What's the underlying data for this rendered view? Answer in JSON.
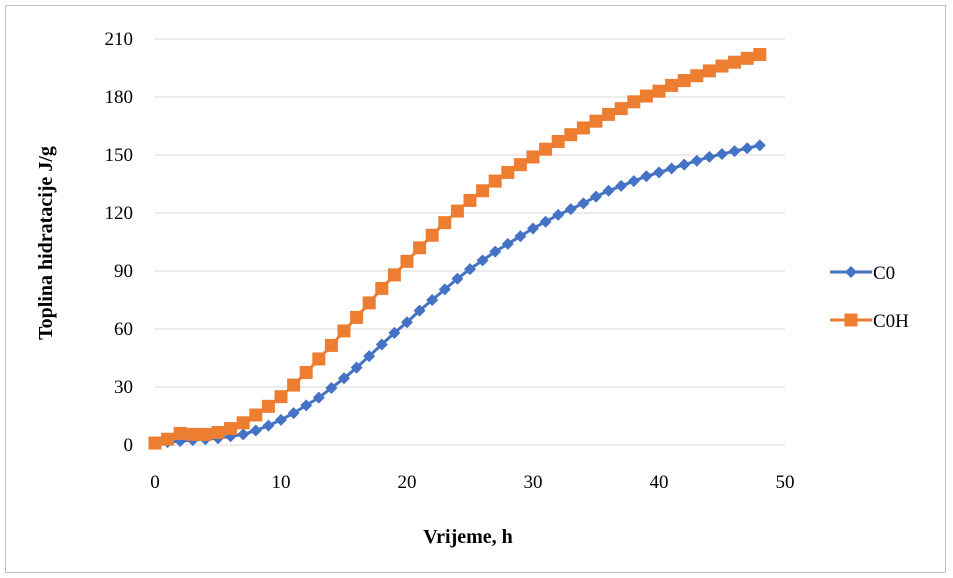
{
  "chart_data": {
    "type": "line",
    "title": "",
    "xlabel": "Vrijeme, h",
    "ylabel": "Toplina hidratacije J/g",
    "xlim": [
      0,
      50
    ],
    "ylim": [
      0,
      210
    ],
    "x_ticks": [
      0,
      10,
      20,
      30,
      40,
      50
    ],
    "y_ticks": [
      0,
      30,
      60,
      90,
      120,
      150,
      180,
      210
    ],
    "grid": "horizontal",
    "legend_position": "right",
    "x": [
      0,
      1,
      2,
      3,
      4,
      5,
      6,
      7,
      8,
      9,
      10,
      11,
      12,
      13,
      14,
      15,
      16,
      17,
      18,
      19,
      20,
      21,
      22,
      23,
      24,
      25,
      26,
      27,
      28,
      29,
      30,
      31,
      32,
      33,
      34,
      35,
      36,
      37,
      38,
      39,
      40,
      41,
      42,
      43,
      44,
      45,
      46,
      47,
      48
    ],
    "series": [
      {
        "name": "C0",
        "color": "#4472C4",
        "marker": "diamond",
        "values": [
          0.5,
          1.5,
          2.0,
          2.5,
          3.0,
          3.5,
          4.5,
          5.5,
          7.5,
          10,
          13,
          16.5,
          20.5,
          24.5,
          29.5,
          34.5,
          40,
          46,
          52,
          58,
          63.5,
          69.5,
          75,
          80.5,
          86,
          91,
          95.5,
          100,
          104,
          108,
          112,
          115.5,
          119,
          122,
          125,
          128.5,
          131.5,
          134,
          136.5,
          139,
          141,
          143,
          145,
          147,
          149,
          150.5,
          152,
          153.5,
          155
        ]
      },
      {
        "name": "C0H",
        "color": "#ED7D31",
        "marker": "square",
        "values": [
          1,
          3,
          6,
          5.5,
          5.5,
          6.5,
          8.5,
          11.5,
          15.5,
          20,
          25,
          31,
          37.5,
          44.5,
          51.5,
          59,
          66,
          73.5,
          81,
          88,
          95,
          102,
          108.5,
          115,
          121,
          126.5,
          131.5,
          136.5,
          141,
          145,
          149,
          153,
          157,
          160.5,
          164,
          167.5,
          171,
          174,
          177.5,
          180.5,
          183,
          186,
          188.5,
          191,
          193.5,
          196,
          198,
          200,
          202
        ]
      }
    ]
  }
}
